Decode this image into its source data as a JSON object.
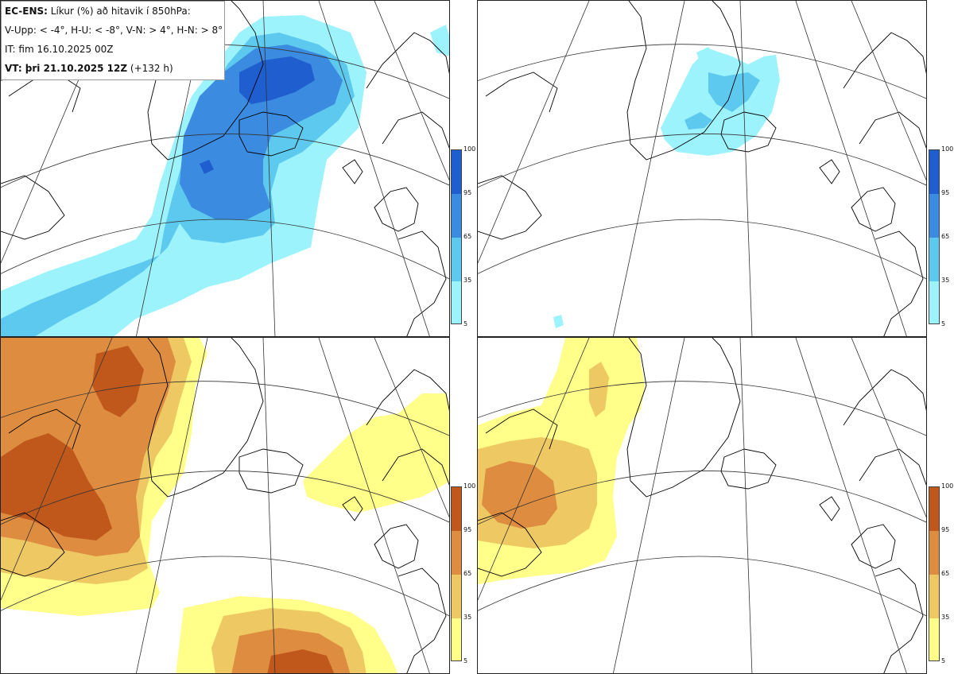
{
  "header": {
    "model": "EC-ENS:",
    "title": "Líkur (%) að hitavik í 850hPa:",
    "legend_line": "V-Upp: < -4°, H-U: < -8°, V-N: > 4°, H-N: > 8°",
    "issue_time": "IT: fim 16.10.2025 00Z",
    "valid_label": "VT: þri 21.10.2025 12Z",
    "lead_time": "(+132 h)"
  },
  "panels": [
    {
      "key": "V-Upp",
      "threshold": "< -4°",
      "scale": "cold"
    },
    {
      "key": "H-U",
      "threshold": "< -8°",
      "scale": "cold"
    },
    {
      "key": "V-N",
      "threshold": "> 4°",
      "scale": "warm"
    },
    {
      "key": "H-N",
      "threshold": "> 8°",
      "scale": "warm"
    }
  ],
  "colorbars": {
    "cold": {
      "ticks": [
        "100",
        "95",
        "65",
        "35",
        "5"
      ],
      "colors": [
        "#1f5ecf",
        "#3b8be0",
        "#5ec9ef",
        "#9cf3fb"
      ]
    },
    "warm": {
      "ticks": [
        "100",
        "95",
        "65",
        "35",
        "5"
      ],
      "colors": [
        "#c0581c",
        "#de8c3f",
        "#eec863",
        "#ffff8a"
      ]
    }
  },
  "colors": {
    "map_background": "#ffffff",
    "coast": "#000000",
    "grid": "#333333"
  }
}
